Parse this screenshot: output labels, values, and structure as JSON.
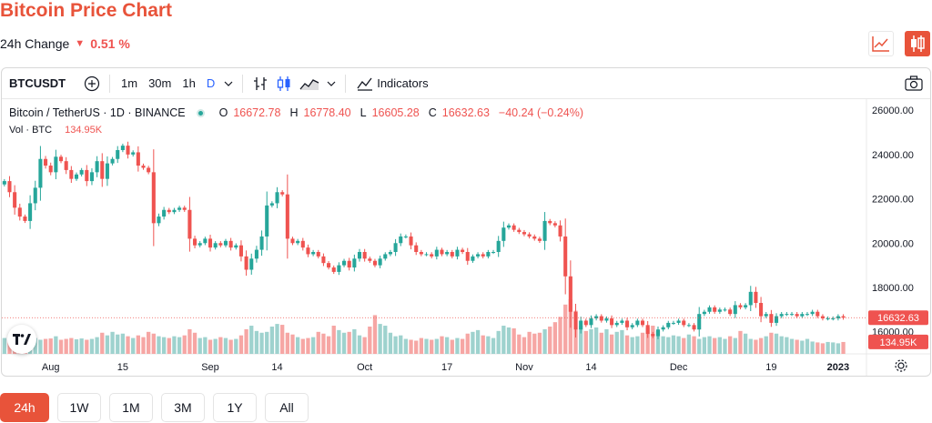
{
  "header": {
    "title": "Bitcoin Price Chart",
    "change_label": "24h Change",
    "change_value": "0.51 %",
    "change_direction": "down"
  },
  "toolbar": {
    "symbol": "BTCUSDT",
    "intervals": [
      "1m",
      "30m",
      "1h",
      "D"
    ],
    "active_interval": "D",
    "indicators_label": "Indicators",
    "icons": [
      "add-symbol-icon",
      "chevron-down-icon",
      "bar-style-icon",
      "candle-style-icon",
      "area-style-icon",
      "indicators-icon",
      "camera-icon"
    ]
  },
  "legend": {
    "instrument": "Bitcoin / TetherUS · 1D · BINANCE",
    "open_label": "O",
    "open": "16672.78",
    "high_label": "H",
    "high": "16778.40",
    "low_label": "L",
    "low": "16605.28",
    "close_label": "C",
    "close": "16632.63",
    "change": "−40.24 (−0.24%)",
    "volume_label": "Vol · BTC",
    "volume": "134.95K"
  },
  "range_buttons": [
    {
      "label": "24h",
      "active": true
    },
    {
      "label": "1W",
      "active": false
    },
    {
      "label": "1M",
      "active": false
    },
    {
      "label": "3M",
      "active": false
    },
    {
      "label": "1Y",
      "active": false
    },
    {
      "label": "All",
      "active": false
    }
  ],
  "colors": {
    "accent": "#e8533a",
    "up": "#26a69a",
    "down": "#ef5350",
    "up_volume": "#9ed2ce",
    "down_volume": "#f6a6a4"
  },
  "chart_data": {
    "type": "candlestick",
    "ylim": [
      15000,
      26500
    ],
    "yticks": [
      16000,
      18000,
      20000,
      22000,
      24000,
      26000
    ],
    "ytick_labels": [
      "16000.00",
      "18000.00",
      "20000.00",
      "22000.00",
      "24000.00",
      "26000.00"
    ],
    "xtick_labels": [
      {
        "label": "Aug",
        "index": 9
      },
      {
        "label": "15",
        "index": 23
      },
      {
        "label": "Sep",
        "index": 40
      },
      {
        "label": "14",
        "index": 53
      },
      {
        "label": "Oct",
        "index": 70
      },
      {
        "label": "17",
        "index": 86
      },
      {
        "label": "Nov",
        "index": 101
      },
      {
        "label": "14",
        "index": 114
      },
      {
        "label": "Dec",
        "index": 131
      },
      {
        "label": "19",
        "index": 149
      },
      {
        "label": "2023",
        "index": 162
      }
    ],
    "last_price": 16632.63,
    "last_price_label": "16632.63",
    "last_volume_label": "134.95K",
    "close_prices": [
      22800,
      22300,
      21600,
      21200,
      21000,
      21800,
      22500,
      23800,
      23500,
      23200,
      23900,
      23700,
      23300,
      22900,
      23100,
      23300,
      22800,
      23200,
      23700,
      22900,
      23600,
      23800,
      24200,
      24400,
      24000,
      24100,
      23500,
      23400,
      23200,
      20900,
      21200,
      21500,
      21400,
      21500,
      21600,
      21500,
      20200,
      19900,
      20000,
      20200,
      19800,
      20000,
      19900,
      20100,
      19800,
      19900,
      19400,
      18800,
      19300,
      19700,
      20300,
      21700,
      21800,
      22300,
      22200,
      20200,
      20000,
      20100,
      19800,
      19500,
      19600,
      19400,
      19100,
      18900,
      18700,
      19000,
      19200,
      18900,
      19300,
      19600,
      19300,
      19200,
      19000,
      19300,
      19500,
      19600,
      20000,
      20300,
      20300,
      19900,
      19600,
      19500,
      19500,
      19400,
      19700,
      19500,
      19600,
      19400,
      19700,
      19600,
      19200,
      19400,
      19500,
      19400,
      19600,
      19600,
      20100,
      20700,
      20800,
      20600,
      20500,
      20400,
      20300,
      20200,
      20100,
      21000,
      20900,
      20800,
      20300,
      18500,
      16900,
      16100,
      16500,
      16300,
      16600,
      16700,
      16500,
      16600,
      16300,
      16400,
      16500,
      16200,
      16300,
      16500,
      16300,
      15900,
      15800,
      16100,
      16200,
      16400,
      16400,
      16500,
      16300,
      16300,
      16100,
      16800,
      16900,
      17100,
      16900,
      17000,
      17000,
      16800,
      17200,
      17100,
      17200,
      17800,
      17300,
      16700,
      16800,
      16400,
      16700,
      16800,
      16800,
      16800,
      16700,
      16800,
      16800,
      16900,
      16700,
      16600,
      16600,
      16600,
      16700,
      16632.63
    ],
    "volumes": [
      180,
      150,
      200,
      170,
      160,
      190,
      180,
      160,
      170,
      175,
      200,
      160,
      170,
      180,
      165,
      175,
      160,
      170,
      190,
      240,
      210,
      250,
      220,
      230,
      200,
      180,
      210,
      190,
      250,
      230,
      200,
      190,
      180,
      200,
      190,
      210,
      280,
      240,
      180,
      190,
      160,
      170,
      190,
      180,
      160,
      170,
      210,
      280,
      320,
      260,
      240,
      250,
      310,
      340,
      330,
      240,
      220,
      190,
      170,
      180,
      190,
      250,
      230,
      200,
      320,
      270,
      240,
      250,
      280,
      210,
      190,
      310,
      440,
      340,
      320,
      240,
      200,
      210,
      170,
      160,
      150,
      180,
      170,
      160,
      170,
      200,
      190,
      160,
      180,
      170,
      230,
      250,
      270,
      210,
      200,
      180,
      260,
      320,
      300,
      290,
      220,
      190,
      250,
      230,
      240,
      280,
      310,
      360,
      420,
      560,
      620,
      490,
      320,
      260,
      280,
      300,
      240,
      280,
      220,
      250,
      270,
      210,
      190,
      200,
      240,
      300,
      320,
      260,
      200,
      190,
      210,
      200,
      180,
      220,
      200,
      170,
      190,
      200,
      180,
      190,
      170,
      200,
      180,
      260,
      230,
      170,
      160,
      180,
      200,
      240,
      230,
      200,
      190,
      170,
      160,
      150,
      170,
      140,
      130,
      120,
      135,
      130,
      120,
      135
    ]
  }
}
